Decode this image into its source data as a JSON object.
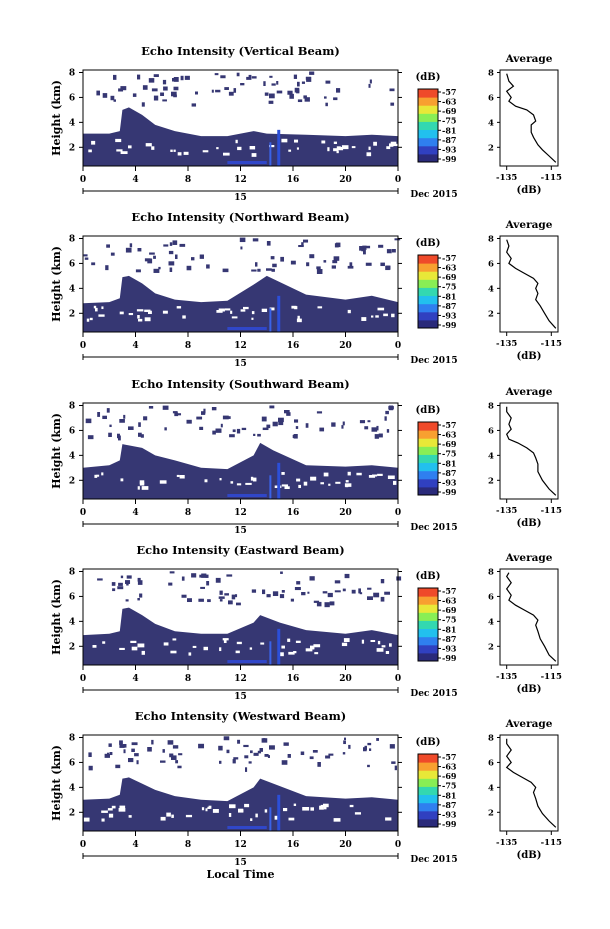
{
  "figure": {
    "bottom_xlabel": "Local Time",
    "date_label": "Dec 2015",
    "day_label": "15"
  },
  "colorbar": {
    "unit": "(dB)",
    "ticks": [
      "-57",
      "-63",
      "-69",
      "-75",
      "-81",
      "-87",
      "-93",
      "-99"
    ],
    "colors": [
      "#2a2a7a",
      "#3040c0",
      "#2f7fef",
      "#22c0ee",
      "#33d8b0",
      "#88ee55",
      "#e8e838",
      "#f8a030",
      "#ef4a2a"
    ]
  },
  "chart_data": [
    {
      "type": "heatmap",
      "title": "Echo Intensity (Vertical Beam)",
      "ylabel": "Height (km)",
      "x_ticks": [
        "0",
        "4",
        "8",
        "12",
        "16",
        "20",
        "0"
      ],
      "y_ticks": [
        "2",
        "4",
        "6",
        "8"
      ],
      "xlim_hours": [
        0,
        24
      ],
      "ylim_km": [
        0.5,
        8.2
      ],
      "echo_top_km": [
        [
          0,
          3.1
        ],
        [
          2,
          3.1
        ],
        [
          2.8,
          3.3
        ],
        [
          3,
          5.0
        ],
        [
          3.5,
          5.2
        ],
        [
          4.5,
          4.6
        ],
        [
          5.5,
          3.8
        ],
        [
          7,
          3.3
        ],
        [
          9,
          2.9
        ],
        [
          11,
          2.9
        ],
        [
          13,
          3.3
        ],
        [
          14,
          3.1
        ],
        [
          17,
          3.0
        ],
        [
          20,
          2.9
        ],
        [
          22,
          3.0
        ],
        [
          24,
          2.9
        ]
      ],
      "profile_title": "Average",
      "profile_xlabel": "(dB)",
      "profile_x_ticks": [
        "-135",
        "-115"
      ],
      "profile_y_ticks": [
        "2",
        "4",
        "6",
        "8"
      ],
      "profile_xlim": [
        -138,
        -112
      ],
      "profile": [
        [
          -113,
          0.8
        ],
        [
          -116,
          1.3
        ],
        [
          -119,
          1.8
        ],
        [
          -121,
          2.2
        ],
        [
          -123,
          2.8
        ],
        [
          -124,
          3.2
        ],
        [
          -124,
          3.8
        ],
        [
          -122,
          4.1
        ],
        [
          -123,
          4.6
        ],
        [
          -126,
          5.0
        ],
        [
          -131,
          5.3
        ],
        [
          -134,
          5.7
        ],
        [
          -133,
          6.0
        ],
        [
          -135,
          6.5
        ],
        [
          -132,
          6.9
        ],
        [
          -134,
          7.3
        ],
        [
          -135,
          7.9
        ]
      ]
    },
    {
      "type": "heatmap",
      "title": "Echo Intensity (Northward Beam)",
      "ylabel": "Height (km)",
      "x_ticks": [
        "0",
        "4",
        "8",
        "12",
        "16",
        "20",
        "0"
      ],
      "y_ticks": [
        "2",
        "4",
        "6",
        "8"
      ],
      "xlim_hours": [
        0,
        24
      ],
      "ylim_km": [
        0.5,
        8.2
      ],
      "echo_top_km": [
        [
          0,
          2.8
        ],
        [
          2,
          2.9
        ],
        [
          2.8,
          3.2
        ],
        [
          3,
          4.9
        ],
        [
          3.5,
          5.0
        ],
        [
          4.5,
          4.4
        ],
        [
          5.5,
          3.6
        ],
        [
          7,
          3.1
        ],
        [
          9,
          2.9
        ],
        [
          11,
          3.0
        ],
        [
          13,
          4.3
        ],
        [
          14,
          5.0
        ],
        [
          15,
          4.5
        ],
        [
          17,
          3.5
        ],
        [
          20,
          3.1
        ],
        [
          22,
          3.4
        ],
        [
          24,
          2.9
        ]
      ],
      "profile_title": "Average",
      "profile_xlabel": "(dB)",
      "profile_x_ticks": [
        "-135",
        "-115"
      ],
      "profile_y_ticks": [
        "2",
        "4",
        "6",
        "8"
      ],
      "profile_xlim": [
        -138,
        -112
      ],
      "profile": [
        [
          -113,
          0.8
        ],
        [
          -116,
          1.4
        ],
        [
          -118,
          2.0
        ],
        [
          -120,
          2.6
        ],
        [
          -122,
          3.1
        ],
        [
          -121,
          3.6
        ],
        [
          -122,
          4.0
        ],
        [
          -121,
          4.4
        ],
        [
          -123,
          4.8
        ],
        [
          -127,
          5.2
        ],
        [
          -131,
          5.6
        ],
        [
          -134,
          6.0
        ],
        [
          -133,
          6.4
        ],
        [
          -135,
          6.9
        ],
        [
          -134,
          7.4
        ],
        [
          -135,
          7.9
        ]
      ]
    },
    {
      "type": "heatmap",
      "title": "Echo Intensity (Southward Beam)",
      "ylabel": "Height (km)",
      "x_ticks": [
        "0",
        "4",
        "8",
        "12",
        "16",
        "20",
        "0"
      ],
      "y_ticks": [
        "2",
        "4",
        "6",
        "8"
      ],
      "xlim_hours": [
        0,
        24
      ],
      "ylim_km": [
        0.5,
        8.2
      ],
      "echo_top_km": [
        [
          0,
          3.0
        ],
        [
          2,
          3.2
        ],
        [
          2.8,
          3.6
        ],
        [
          3,
          4.9
        ],
        [
          3.5,
          4.8
        ],
        [
          4.5,
          4.6
        ],
        [
          5.5,
          4.0
        ],
        [
          7,
          3.6
        ],
        [
          9,
          3.0
        ],
        [
          11,
          2.9
        ],
        [
          13,
          4.0
        ],
        [
          13.5,
          5.0
        ],
        [
          14.5,
          4.4
        ],
        [
          17,
          3.2
        ],
        [
          20,
          3.1
        ],
        [
          22,
          3.2
        ],
        [
          24,
          3.0
        ]
      ],
      "profile_title": "Average",
      "profile_xlabel": "(dB)",
      "profile_x_ticks": [
        "-135",
        "-115"
      ],
      "profile_y_ticks": [
        "2",
        "4",
        "6",
        "8"
      ],
      "profile_xlim": [
        -138,
        -112
      ],
      "profile": [
        [
          -113,
          0.8
        ],
        [
          -116,
          1.3
        ],
        [
          -119,
          2.0
        ],
        [
          -121,
          2.7
        ],
        [
          -121,
          3.3
        ],
        [
          -122,
          3.8
        ],
        [
          -123,
          4.2
        ],
        [
          -126,
          4.6
        ],
        [
          -130,
          5.0
        ],
        [
          -134,
          5.3
        ],
        [
          -135,
          5.7
        ],
        [
          -133,
          6.1
        ],
        [
          -134,
          6.5
        ],
        [
          -133,
          7.0
        ],
        [
          -135,
          7.5
        ],
        [
          -135,
          7.9
        ]
      ]
    },
    {
      "type": "heatmap",
      "title": "Echo Intensity (Eastward Beam)",
      "ylabel": "Height (km)",
      "x_ticks": [
        "0",
        "4",
        "8",
        "12",
        "16",
        "20",
        "0"
      ],
      "y_ticks": [
        "2",
        "4",
        "6",
        "8"
      ],
      "xlim_hours": [
        0,
        24
      ],
      "ylim_km": [
        0.5,
        8.2
      ],
      "echo_top_km": [
        [
          0,
          2.9
        ],
        [
          2,
          3.0
        ],
        [
          2.8,
          3.2
        ],
        [
          3,
          5.0
        ],
        [
          3.5,
          5.1
        ],
        [
          4.5,
          4.5
        ],
        [
          5.5,
          3.8
        ],
        [
          7,
          3.2
        ],
        [
          9,
          3.0
        ],
        [
          11,
          3.0
        ],
        [
          13,
          3.9
        ],
        [
          13.5,
          4.5
        ],
        [
          15,
          3.9
        ],
        [
          17,
          3.3
        ],
        [
          20,
          3.0
        ],
        [
          22,
          3.3
        ],
        [
          24,
          2.9
        ]
      ],
      "profile_title": "Average",
      "profile_xlabel": "(dB)",
      "profile_x_ticks": [
        "-135",
        "-115"
      ],
      "profile_y_ticks": [
        "2",
        "4",
        "6",
        "8"
      ],
      "profile_xlim": [
        -138,
        -112
      ],
      "profile": [
        [
          -113,
          0.8
        ],
        [
          -116,
          1.3
        ],
        [
          -118,
          2.0
        ],
        [
          -120,
          2.6
        ],
        [
          -121,
          3.2
        ],
        [
          -122,
          3.7
        ],
        [
          -121,
          4.1
        ],
        [
          -123,
          4.5
        ],
        [
          -127,
          4.9
        ],
        [
          -131,
          5.3
        ],
        [
          -134,
          5.7
        ],
        [
          -133,
          6.1
        ],
        [
          -135,
          6.6
        ],
        [
          -133,
          7.1
        ],
        [
          -135,
          7.6
        ],
        [
          -134,
          7.9
        ]
      ]
    },
    {
      "type": "heatmap",
      "title": "Echo Intensity (Westward Beam)",
      "ylabel": "Height (km)",
      "x_ticks": [
        "0",
        "4",
        "8",
        "12",
        "16",
        "20",
        "0"
      ],
      "y_ticks": [
        "2",
        "4",
        "6",
        "8"
      ],
      "xlim_hours": [
        0,
        24
      ],
      "ylim_km": [
        0.5,
        8.2
      ],
      "echo_top_km": [
        [
          0,
          3.0
        ],
        [
          2,
          3.1
        ],
        [
          2.8,
          3.4
        ],
        [
          3,
          4.7
        ],
        [
          3.5,
          4.8
        ],
        [
          4.5,
          4.3
        ],
        [
          5.5,
          3.8
        ],
        [
          7,
          3.3
        ],
        [
          9,
          3.0
        ],
        [
          11,
          2.9
        ],
        [
          13,
          4.0
        ],
        [
          13.5,
          4.7
        ],
        [
          15,
          4.1
        ],
        [
          17,
          3.3
        ],
        [
          20,
          3.1
        ],
        [
          22,
          3.2
        ],
        [
          24,
          3.0
        ]
      ],
      "profile_title": "Average",
      "profile_xlabel": "(dB)",
      "profile_x_ticks": [
        "-135",
        "-115"
      ],
      "profile_y_ticks": [
        "2",
        "4",
        "6",
        "8"
      ],
      "profile_xlim": [
        -138,
        -112
      ],
      "profile": [
        [
          -113,
          0.8
        ],
        [
          -116,
          1.3
        ],
        [
          -119,
          1.9
        ],
        [
          -121,
          2.5
        ],
        [
          -122,
          3.1
        ],
        [
          -123,
          3.6
        ],
        [
          -122,
          4.0
        ],
        [
          -124,
          4.4
        ],
        [
          -128,
          4.8
        ],
        [
          -132,
          5.2
        ],
        [
          -135,
          5.6
        ],
        [
          -133,
          6.0
        ],
        [
          -135,
          6.5
        ],
        [
          -133,
          7.0
        ],
        [
          -135,
          7.5
        ],
        [
          -135,
          7.9
        ]
      ]
    }
  ]
}
